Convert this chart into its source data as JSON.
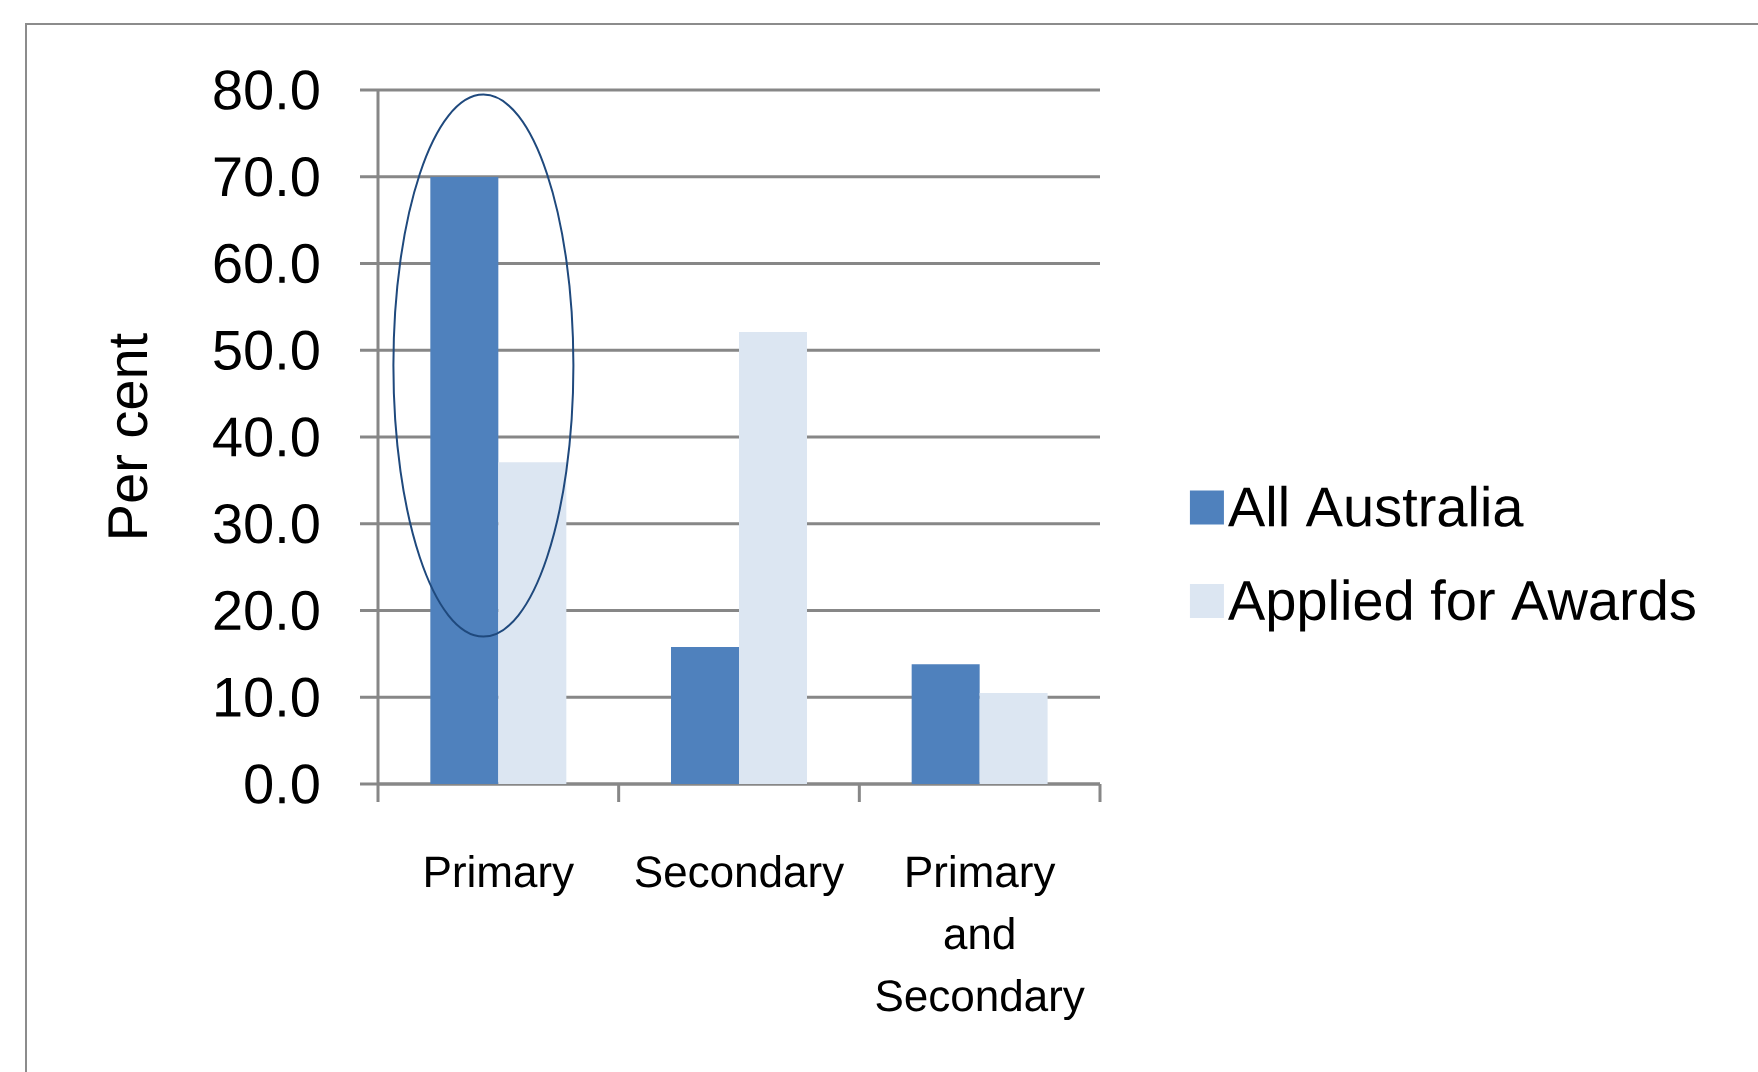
{
  "chart_data": {
    "type": "bar",
    "ylabel": "Per cent",
    "categories": [
      "Primary",
      "Secondary",
      "Primary and Secondary"
    ],
    "series": [
      {
        "name": "All Australia",
        "color": "#4f81bd",
        "values": [
          70.0,
          15.8,
          13.8
        ]
      },
      {
        "name": "Applied for Awards",
        "color": "#dce6f2",
        "values": [
          37.1,
          52.1,
          10.5
        ]
      }
    ],
    "ylim": [
      0,
      80
    ],
    "yticks": [
      {
        "value": 0,
        "label": "0.0"
      },
      {
        "value": 10,
        "label": "10.0"
      },
      {
        "value": 20,
        "label": "20.0"
      },
      {
        "value": 30,
        "label": "30.0"
      },
      {
        "value": 40,
        "label": "40.0"
      },
      {
        "value": 50,
        "label": "50.0"
      },
      {
        "value": 60,
        "label": "60.0"
      },
      {
        "value": 70,
        "label": "70.0"
      },
      {
        "value": 80,
        "label": "80.0"
      }
    ],
    "grid": "y",
    "legend": "right"
  }
}
